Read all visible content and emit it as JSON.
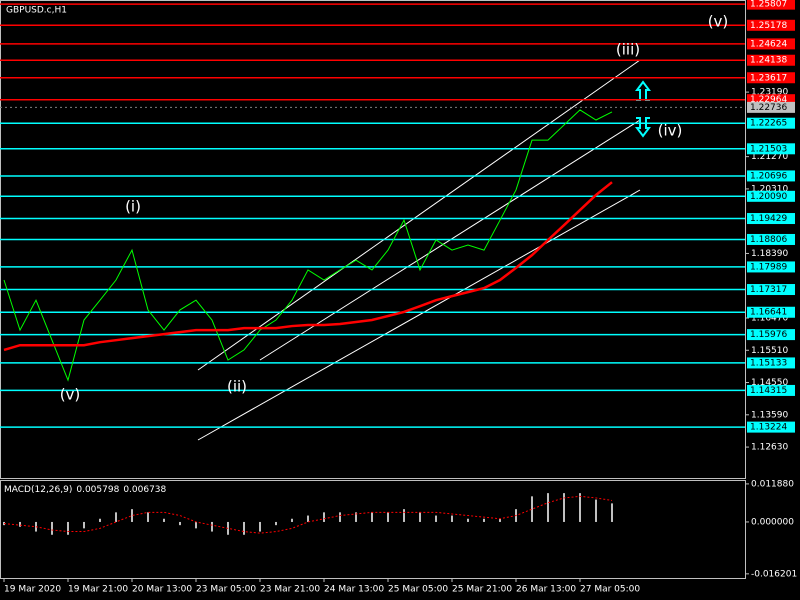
{
  "chart_data": [
    {
      "type": "line",
      "title": "GBPUSD.c,H1",
      "categories": [
        "19 Mar 2020",
        null,
        null,
        null,
        "19 Mar 21:00",
        null,
        null,
        null,
        "20 Mar 13:00",
        null,
        null,
        null,
        "23 Mar 05:00",
        null,
        null,
        null,
        "23 Mar 21:00",
        null,
        null,
        null,
        "24 Mar 13:00",
        null,
        null,
        null,
        "25 Mar 05:00",
        null,
        null,
        null,
        "25 Mar 21:00",
        null,
        null,
        null,
        "26 Mar 13:00",
        null,
        null,
        null,
        "27 Mar 05:00",
        null,
        null
      ],
      "series": [
        {
          "color": "#00ff00",
          "values": [
            1.176,
            1.1611,
            1.17,
            1.1581,
            1.1462,
            1.1641,
            1.17,
            1.176,
            1.1849,
            1.1671,
            1.1611,
            1.1671,
            1.17,
            1.1641,
            1.1522,
            1.1552,
            1.1611,
            1.1641,
            1.17,
            1.179,
            1.176,
            1.179,
            1.1819,
            1.179,
            1.1849,
            1.1938,
            1.179,
            1.1879,
            1.1849,
            1.1864,
            1.1849,
            1.1938,
            1.2028,
            1.2176,
            1.2176,
            1.2221,
            1.2266,
            1.2236,
            1.226
          ]
        },
        {
          "color": "#ff0000",
          "values": [
            1.1552,
            1.1566,
            1.1566,
            1.1566,
            1.1566,
            1.1566,
            1.1575,
            1.1581,
            1.1587,
            1.1593,
            1.1599,
            1.1605,
            1.1611,
            1.1611,
            1.1611,
            1.1617,
            1.1617,
            1.1617,
            1.1623,
            1.1626,
            1.1626,
            1.1629,
            1.1635,
            1.1641,
            1.1653,
            1.1665,
            1.1682,
            1.17,
            1.1712,
            1.1724,
            1.1736,
            1.176,
            1.1796,
            1.1834,
            1.1879,
            1.1923,
            1.1968,
            1.2013,
            1.2051
          ]
        }
      ],
      "ylim": [
        1.1171,
        1.2593
      ],
      "yticks": [
        {
          "value": 1.2319,
          "label": "1.23190"
        },
        {
          "value": 1.2127,
          "label": "1.21270"
        },
        {
          "value": 1.2031,
          "label": "1.20310"
        },
        {
          "value": 1.1839,
          "label": "1.18390"
        },
        {
          "value": 1.1647,
          "label": "1.16470"
        },
        {
          "value": 1.1551,
          "label": "1.15510"
        },
        {
          "value": 1.1455,
          "label": "1.14550"
        },
        {
          "value": 1.1359,
          "label": "1.13590"
        },
        {
          "value": 1.1263,
          "label": "1.12630"
        }
      ],
      "levels": [
        {
          "value": 1.25807,
          "label": "1.25807",
          "color": "#ff0000"
        },
        {
          "value": 1.25178,
          "label": "1.25178",
          "color": "#ff0000"
        },
        {
          "value": 1.24624,
          "label": "1.24624",
          "color": "#ff0000"
        },
        {
          "value": 1.24138,
          "label": "1.24138",
          "color": "#ff0000"
        },
        {
          "value": 1.23617,
          "label": "1.23617",
          "color": "#ff0000"
        },
        {
          "value": 1.22964,
          "label": "1.22964",
          "color": "#ff0000"
        },
        {
          "value": 1.22265,
          "label": "1.22265",
          "color": "#00ffff"
        },
        {
          "value": 1.21503,
          "label": "1.21503",
          "color": "#00ffff"
        },
        {
          "value": 1.20696,
          "label": "1.20696",
          "color": "#00ffff"
        },
        {
          "value": 1.2009,
          "label": "1.20090",
          "color": "#00ffff"
        },
        {
          "value": 1.19429,
          "label": "1.19429",
          "color": "#00ffff"
        },
        {
          "value": 1.18806,
          "label": "1.18806",
          "color": "#00ffff"
        },
        {
          "value": 1.17989,
          "label": "1.17989",
          "color": "#00ffff"
        },
        {
          "value": 1.17317,
          "label": "1.17317",
          "color": "#00ffff"
        },
        {
          "value": 1.16641,
          "label": "1.16641",
          "color": "#00ffff"
        },
        {
          "value": 1.15976,
          "label": "1.15976",
          "color": "#00ffff"
        },
        {
          "value": 1.15133,
          "label": "1.15133",
          "color": "#00ffff"
        },
        {
          "value": 1.14315,
          "label": "1.14315",
          "color": "#00ffff"
        },
        {
          "value": 1.13224,
          "label": "1.13224",
          "color": "#00ffff"
        }
      ],
      "current_price": {
        "value": 1.22736,
        "label": "1.22736"
      },
      "annotations": [
        "(v)",
        "(iii)",
        "(iv)",
        "(i)",
        "(ii)",
        "(v)"
      ]
    },
    {
      "type": "bar",
      "title": "MACD(12,26,9)",
      "macd_value": 0.005798,
      "signal_value": 0.006738,
      "values": [
        -0.001,
        -0.0015,
        -0.003,
        -0.004,
        -0.004,
        -0.002,
        0.001,
        0.003,
        0.004,
        0.003,
        0.001,
        -0.001,
        -0.002,
        -0.003,
        -0.004,
        -0.004,
        -0.003,
        -0.001,
        0.001,
        0.002,
        0.003,
        0.003,
        0.003,
        0.003,
        0.003,
        0.004,
        0.003,
        0.002,
        0.002,
        0.001,
        0.001,
        0.001,
        0.004,
        0.008,
        0.009,
        0.009,
        0.009,
        0.007,
        0.0058
      ],
      "signal": {
        "color": "#ff0000",
        "values": [
          -0.0005,
          -0.001,
          -0.0015,
          -0.0025,
          -0.003,
          -0.003,
          -0.002,
          0,
          0.002,
          0.003,
          0.003,
          0.002,
          0,
          -0.001,
          -0.002,
          -0.003,
          -0.0035,
          -0.003,
          -0.002,
          0,
          0.001,
          0.002,
          0.0025,
          0.003,
          0.003,
          0.003,
          0.003,
          0.003,
          0.0025,
          0.002,
          0.0015,
          0.001,
          0.002,
          0.004,
          0.006,
          0.0075,
          0.008,
          0.0075,
          0.0067
        ]
      },
      "color": "#c0c0c0",
      "ylim": [
        -0.0175,
        0.0131
      ],
      "yticks": [
        {
          "value": 0.01188,
          "label": "0.011880"
        },
        {
          "value": 0,
          "label": "0.000000"
        },
        {
          "value": -0.016201,
          "label": "-0.016201"
        }
      ]
    }
  ]
}
